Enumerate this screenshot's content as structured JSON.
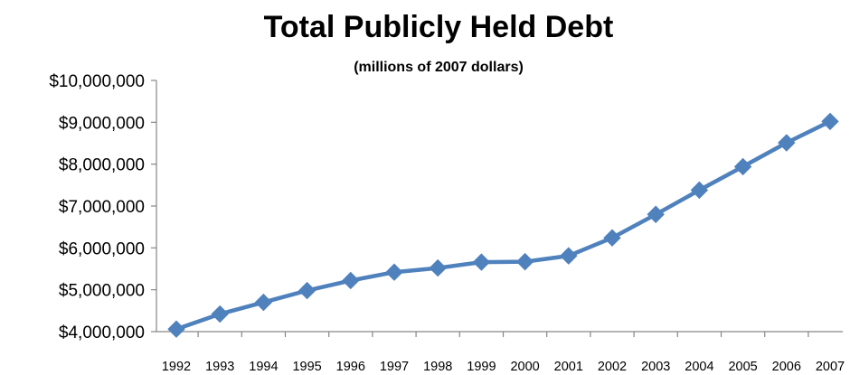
{
  "chart_data": {
    "type": "line",
    "title": "Total Publicly Held Debt",
    "subtitle": "(millions of 2007 dollars)",
    "xlabel": "",
    "ylabel": "",
    "categories": [
      "1992",
      "1993",
      "1994",
      "1995",
      "1996",
      "1997",
      "1998",
      "1999",
      "2000",
      "2001",
      "2002",
      "2003",
      "2004",
      "2005",
      "2006",
      "2007"
    ],
    "series": [
      {
        "values": [
          4060000,
          4420000,
          4700000,
          4980000,
          5220000,
          5420000,
          5520000,
          5660000,
          5670000,
          5810000,
          6240000,
          6800000,
          7380000,
          7940000,
          8510000,
          9020000
        ]
      }
    ],
    "ylim": [
      4000000,
      10000000
    ],
    "yticks": [
      "$4,000,000",
      "$5,000,000",
      "$6,000,000",
      "$7,000,000",
      "$8,000,000",
      "$9,000,000",
      "$10,000,000"
    ],
    "grid": false,
    "legend": "none",
    "colors": {
      "line": "#4f81bd",
      "marker": "#4f81bd",
      "axis": "#868686"
    }
  }
}
